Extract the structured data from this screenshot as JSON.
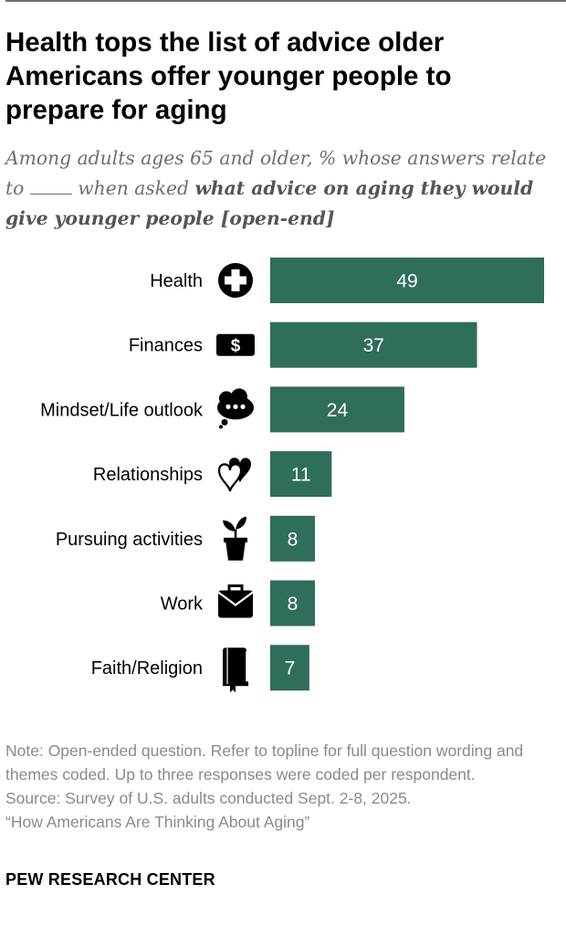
{
  "chart_data": {
    "type": "bar",
    "orientation": "horizontal",
    "title": "Health tops the list of advice older Americans offer younger people to prepare for aging",
    "subtitle_lead": "Among adults ages 65 and older, % whose answers relate to",
    "subtitle_mid": "when asked",
    "subtitle_bold": "what advice on aging they would give younger people [open-end]",
    "categories": [
      "Health",
      "Finances",
      "Mindset/Life outlook",
      "Relationships",
      "Pursuing activities",
      "Work",
      "Faith/Religion"
    ],
    "values": [
      49,
      37,
      24,
      11,
      8,
      8,
      7
    ],
    "icons": [
      "health-cross-icon",
      "dollar-bill-icon",
      "thought-bubble-icon",
      "two-hearts-icon",
      "potted-plant-icon",
      "briefcase-icon",
      "book-icon"
    ],
    "bar_color": "#2f6d5c",
    "value_label_color": "#ffffff",
    "xlim": [
      0,
      49
    ],
    "grid": false
  },
  "notes": {
    "note": "Note: Open-ended question. Refer to topline for full question wording and themes coded. Up to three responses were coded per respondent.",
    "source": "Source: Survey of U.S. adults conducted Sept. 2-8, 2025.",
    "report": "“How Americans Are Thinking About Aging”"
  },
  "brand": "PEW RESEARCH CENTER"
}
